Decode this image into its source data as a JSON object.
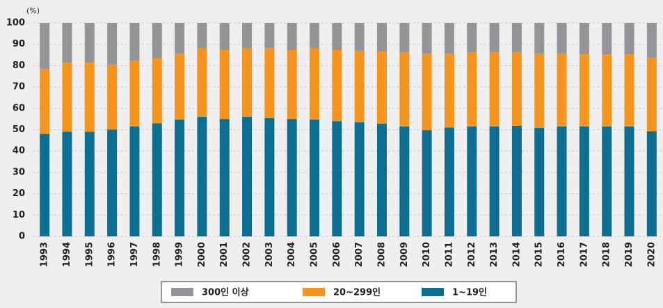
{
  "chart_data": {
    "type": "stacked_bar",
    "y_label": "(%)",
    "categories": [
      "1993",
      "1994",
      "1995",
      "1996",
      "1997",
      "1998",
      "1999",
      "2000",
      "2001",
      "2002",
      "2003",
      "2004",
      "2005",
      "2006",
      "2007",
      "2008",
      "2009",
      "2010",
      "2011",
      "2012",
      "2013",
      "2014",
      "2015",
      "2016",
      "2017",
      "2018",
      "2019",
      "2020"
    ],
    "series": [
      {
        "name": "300인 이상",
        "color": "#939598",
        "values": [
          21.5,
          18.6,
          18.6,
          19.5,
          17.6,
          16.6,
          14.3,
          12,
          12.7,
          12,
          11.7,
          12.7,
          12,
          12.7,
          13,
          13.4,
          13.7,
          14.3,
          14.3,
          13.7,
          13.7,
          13.7,
          14.3,
          14.3,
          14.7,
          14.7,
          14.7,
          16.3
        ]
      },
      {
        "name": "20~299인",
        "color": "#f7941d",
        "values": [
          30.5,
          32.4,
          32.4,
          30.5,
          30.9,
          30.4,
          31,
          32,
          32.3,
          32,
          32.9,
          32.3,
          33.3,
          33.3,
          33.6,
          33.8,
          34.8,
          35.9,
          34.7,
          34.8,
          34.8,
          34.5,
          34.9,
          34.2,
          33.8,
          33.8,
          33.8,
          34.5
        ]
      },
      {
        "name": "1~19인",
        "color": "#0a6f93",
        "values": [
          48,
          49,
          49,
          50,
          51.5,
          53,
          54.7,
          56,
          55,
          56,
          55.4,
          55,
          54.7,
          54,
          53.4,
          52.8,
          51.5,
          49.8,
          51,
          51.5,
          51.5,
          51.8,
          50.8,
          51.5,
          51.5,
          51.5,
          51.5,
          49.2
        ]
      }
    ],
    "ylim": [
      0,
      100
    ],
    "yticks": [
      0,
      10,
      20,
      30,
      40,
      50,
      60,
      70,
      80,
      90,
      100
    ],
    "grid": true
  }
}
